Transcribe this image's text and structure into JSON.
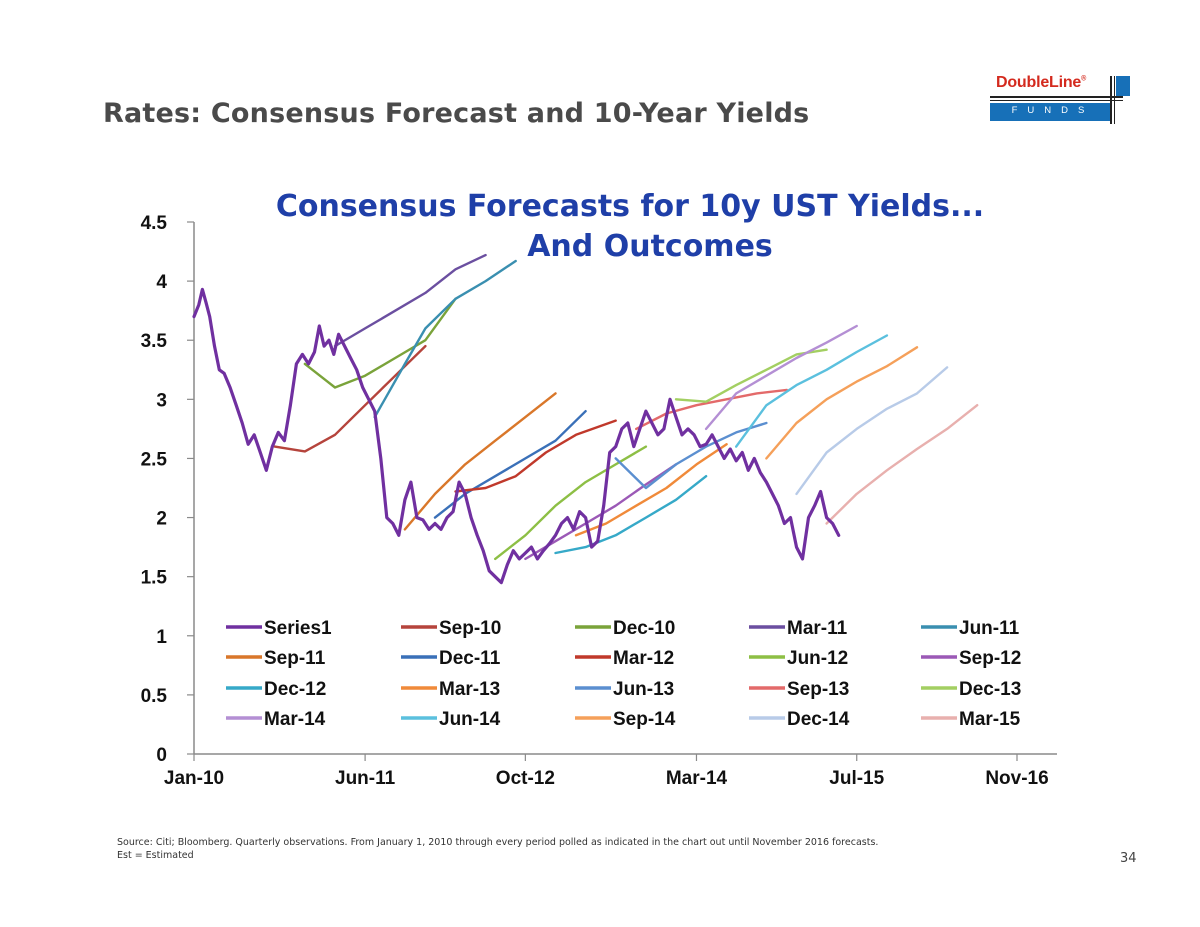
{
  "slide": {
    "title": "Rates: Consensus Forecast and 10-Year Yields",
    "source_line1": "Source: Citi; Bloomberg. Quarterly observations. From January 1, 2010  through every period polled as indicated in the chart out until November 2016 forecasts.",
    "source_line2": "Est = Estimated",
    "page_number": "34"
  },
  "logo": {
    "wordmark": "DoubleLine",
    "registered": "®",
    "subtitle": "FUNDS",
    "colors": {
      "red": "#d42a1e",
      "blue": "#1770b8"
    }
  },
  "chart_data": {
    "type": "line",
    "title_line1": "Consensus Forecasts for 10y UST Yields...",
    "title_line2": "And Outcomes",
    "title_color": "#1f3fa8",
    "y_ticks": [
      "0",
      "0.5",
      "1",
      "1.5",
      "2",
      "2.5",
      "3",
      "3.5",
      "4",
      "4.5"
    ],
    "ylim": [
      0,
      4.5
    ],
    "x_ticks": [
      {
        "label": "Jan-10",
        "t": 2010.0
      },
      {
        "label": "Jun-11",
        "t": 2011.42
      },
      {
        "label": "Oct-12",
        "t": 2012.75
      },
      {
        "label": "Mar-14",
        "t": 2014.17
      },
      {
        "label": "Jul-15",
        "t": 2015.5
      },
      {
        "label": "Nov-16",
        "t": 2016.83
      }
    ],
    "xlim": [
      2010.0,
      2016.83
    ],
    "series": [
      {
        "name": "Series1",
        "color": "#7030a0",
        "width": 3.2,
        "points": [
          [
            2010.0,
            3.7
          ],
          [
            2010.04,
            3.8
          ],
          [
            2010.07,
            3.93
          ],
          [
            2010.1,
            3.82
          ],
          [
            2010.13,
            3.7
          ],
          [
            2010.17,
            3.45
          ],
          [
            2010.21,
            3.25
          ],
          [
            2010.25,
            3.22
          ],
          [
            2010.3,
            3.1
          ],
          [
            2010.35,
            2.95
          ],
          [
            2010.4,
            2.8
          ],
          [
            2010.45,
            2.62
          ],
          [
            2010.5,
            2.7
          ],
          [
            2010.55,
            2.55
          ],
          [
            2010.6,
            2.4
          ],
          [
            2010.65,
            2.6
          ],
          [
            2010.7,
            2.72
          ],
          [
            2010.75,
            2.65
          ],
          [
            2010.8,
            2.95
          ],
          [
            2010.85,
            3.3
          ],
          [
            2010.9,
            3.38
          ],
          [
            2010.95,
            3.3
          ],
          [
            2011.0,
            3.4
          ],
          [
            2011.04,
            3.62
          ],
          [
            2011.08,
            3.45
          ],
          [
            2011.12,
            3.5
          ],
          [
            2011.16,
            3.38
          ],
          [
            2011.2,
            3.55
          ],
          [
            2011.25,
            3.45
          ],
          [
            2011.3,
            3.35
          ],
          [
            2011.35,
            3.25
          ],
          [
            2011.4,
            3.1
          ],
          [
            2011.45,
            3.0
          ],
          [
            2011.5,
            2.9
          ],
          [
            2011.55,
            2.5
          ],
          [
            2011.6,
            2.0
          ],
          [
            2011.65,
            1.95
          ],
          [
            2011.7,
            1.85
          ],
          [
            2011.75,
            2.15
          ],
          [
            2011.8,
            2.3
          ],
          [
            2011.85,
            2.0
          ],
          [
            2011.9,
            1.98
          ],
          [
            2011.95,
            1.9
          ],
          [
            2012.0,
            1.95
          ],
          [
            2012.05,
            1.9
          ],
          [
            2012.1,
            2.0
          ],
          [
            2012.15,
            2.05
          ],
          [
            2012.2,
            2.3
          ],
          [
            2012.25,
            2.2
          ],
          [
            2012.3,
            2.0
          ],
          [
            2012.35,
            1.85
          ],
          [
            2012.4,
            1.72
          ],
          [
            2012.45,
            1.55
          ],
          [
            2012.5,
            1.5
          ],
          [
            2012.55,
            1.45
          ],
          [
            2012.6,
            1.6
          ],
          [
            2012.65,
            1.72
          ],
          [
            2012.7,
            1.65
          ],
          [
            2012.75,
            1.7
          ],
          [
            2012.8,
            1.75
          ],
          [
            2012.85,
            1.65
          ],
          [
            2012.9,
            1.72
          ],
          [
            2012.95,
            1.78
          ],
          [
            2013.0,
            1.85
          ],
          [
            2013.05,
            1.95
          ],
          [
            2013.1,
            2.0
          ],
          [
            2013.15,
            1.9
          ],
          [
            2013.2,
            2.05
          ],
          [
            2013.25,
            2.0
          ],
          [
            2013.3,
            1.75
          ],
          [
            2013.35,
            1.8
          ],
          [
            2013.4,
            2.1
          ],
          [
            2013.45,
            2.55
          ],
          [
            2013.5,
            2.6
          ],
          [
            2013.55,
            2.75
          ],
          [
            2013.6,
            2.8
          ],
          [
            2013.65,
            2.6
          ],
          [
            2013.7,
            2.75
          ],
          [
            2013.75,
            2.9
          ],
          [
            2013.8,
            2.8
          ],
          [
            2013.85,
            2.7
          ],
          [
            2013.9,
            2.75
          ],
          [
            2013.95,
            3.0
          ],
          [
            2014.0,
            2.85
          ],
          [
            2014.05,
            2.7
          ],
          [
            2014.1,
            2.75
          ],
          [
            2014.15,
            2.7
          ],
          [
            2014.2,
            2.6
          ],
          [
            2014.25,
            2.62
          ],
          [
            2014.3,
            2.7
          ],
          [
            2014.35,
            2.6
          ],
          [
            2014.4,
            2.5
          ],
          [
            2014.45,
            2.58
          ],
          [
            2014.5,
            2.48
          ],
          [
            2014.55,
            2.55
          ],
          [
            2014.6,
            2.4
          ],
          [
            2014.65,
            2.5
          ],
          [
            2014.7,
            2.38
          ],
          [
            2014.75,
            2.3
          ],
          [
            2014.8,
            2.2
          ],
          [
            2014.85,
            2.1
          ],
          [
            2014.9,
            1.95
          ],
          [
            2014.95,
            2.0
          ],
          [
            2015.0,
            1.75
          ],
          [
            2015.05,
            1.65
          ],
          [
            2015.1,
            2.0
          ],
          [
            2015.15,
            2.1
          ],
          [
            2015.2,
            2.22
          ],
          [
            2015.25,
            2.0
          ],
          [
            2015.3,
            1.95
          ],
          [
            2015.35,
            1.85
          ]
        ]
      },
      {
        "name": "Sep-10",
        "color": "#b5443c",
        "width": 2.4,
        "points": [
          [
            2010.67,
            2.6
          ],
          [
            2010.92,
            2.56
          ],
          [
            2011.17,
            2.7
          ],
          [
            2011.42,
            2.95
          ],
          [
            2011.67,
            3.2
          ],
          [
            2011.92,
            3.45
          ]
        ]
      },
      {
        "name": "Dec-10",
        "color": "#7aa33a",
        "width": 2.4,
        "points": [
          [
            2010.92,
            3.3
          ],
          [
            2011.17,
            3.1
          ],
          [
            2011.42,
            3.2
          ],
          [
            2011.67,
            3.35
          ],
          [
            2011.92,
            3.5
          ],
          [
            2012.17,
            3.85
          ]
        ]
      },
      {
        "name": "Mar-11",
        "color": "#6b4fa0",
        "width": 2.4,
        "points": [
          [
            2011.17,
            3.45
          ],
          [
            2011.42,
            3.6
          ],
          [
            2011.67,
            3.75
          ],
          [
            2011.92,
            3.9
          ],
          [
            2012.17,
            4.1
          ],
          [
            2012.42,
            4.22
          ]
        ]
      },
      {
        "name": "Jun-11",
        "color": "#3a8fb0",
        "width": 2.4,
        "points": [
          [
            2011.5,
            2.85
          ],
          [
            2011.75,
            3.3
          ],
          [
            2011.92,
            3.6
          ],
          [
            2012.17,
            3.85
          ],
          [
            2012.42,
            4.0
          ],
          [
            2012.67,
            4.17
          ]
        ]
      },
      {
        "name": "Sep-11",
        "color": "#d9772a",
        "width": 2.4,
        "points": [
          [
            2011.75,
            1.9
          ],
          [
            2012.0,
            2.2
          ],
          [
            2012.25,
            2.45
          ],
          [
            2012.5,
            2.65
          ],
          [
            2012.75,
            2.85
          ],
          [
            2013.0,
            3.05
          ]
        ]
      },
      {
        "name": "Dec-11",
        "color": "#3a70b8",
        "width": 2.4,
        "points": [
          [
            2012.0,
            2.0
          ],
          [
            2012.25,
            2.2
          ],
          [
            2012.5,
            2.35
          ],
          [
            2012.75,
            2.5
          ],
          [
            2013.0,
            2.65
          ],
          [
            2013.25,
            2.9
          ]
        ]
      },
      {
        "name": "Mar-12",
        "color": "#c0392b",
        "width": 2.4,
        "points": [
          [
            2012.17,
            2.22
          ],
          [
            2012.42,
            2.25
          ],
          [
            2012.67,
            2.35
          ],
          [
            2012.92,
            2.55
          ],
          [
            2013.17,
            2.7
          ],
          [
            2013.5,
            2.82
          ]
        ]
      },
      {
        "name": "Jun-12",
        "color": "#8dbf45",
        "width": 2.4,
        "points": [
          [
            2012.5,
            1.65
          ],
          [
            2012.75,
            1.85
          ],
          [
            2013.0,
            2.1
          ],
          [
            2013.25,
            2.3
          ],
          [
            2013.5,
            2.45
          ],
          [
            2013.75,
            2.6
          ]
        ]
      },
      {
        "name": "Sep-12",
        "color": "#9b59b6",
        "width": 2.4,
        "points": [
          [
            2012.75,
            1.65
          ],
          [
            2013.0,
            1.8
          ],
          [
            2013.25,
            1.95
          ],
          [
            2013.5,
            2.1
          ],
          [
            2013.75,
            2.28
          ],
          [
            2014.0,
            2.45
          ]
        ]
      },
      {
        "name": "Dec-12",
        "color": "#36a9c8",
        "width": 2.4,
        "points": [
          [
            2013.0,
            1.7
          ],
          [
            2013.25,
            1.75
          ],
          [
            2013.5,
            1.85
          ],
          [
            2013.75,
            2.0
          ],
          [
            2014.0,
            2.15
          ],
          [
            2014.25,
            2.35
          ]
        ]
      },
      {
        "name": "Mar-13",
        "color": "#f08a3a",
        "width": 2.4,
        "points": [
          [
            2013.17,
            1.85
          ],
          [
            2013.42,
            1.95
          ],
          [
            2013.67,
            2.1
          ],
          [
            2013.92,
            2.25
          ],
          [
            2014.17,
            2.45
          ],
          [
            2014.42,
            2.62
          ]
        ]
      },
      {
        "name": "Jun-13",
        "color": "#5b8fd0",
        "width": 2.4,
        "points": [
          [
            2013.5,
            2.5
          ],
          [
            2013.75,
            2.25
          ],
          [
            2014.0,
            2.45
          ],
          [
            2014.25,
            2.6
          ],
          [
            2014.5,
            2.72
          ],
          [
            2014.75,
            2.8
          ]
        ]
      },
      {
        "name": "Sep-13",
        "color": "#e36a6a",
        "width": 2.4,
        "points": [
          [
            2013.67,
            2.75
          ],
          [
            2013.92,
            2.88
          ],
          [
            2014.17,
            2.95
          ],
          [
            2014.42,
            3.0
          ],
          [
            2014.67,
            3.05
          ],
          [
            2014.92,
            3.08
          ]
        ]
      },
      {
        "name": "Dec-13",
        "color": "#a3cf62",
        "width": 2.4,
        "points": [
          [
            2014.0,
            3.0
          ],
          [
            2014.25,
            2.98
          ],
          [
            2014.5,
            3.12
          ],
          [
            2014.75,
            3.25
          ],
          [
            2015.0,
            3.38
          ],
          [
            2015.25,
            3.42
          ]
        ]
      },
      {
        "name": "Mar-14",
        "color": "#b48fd4",
        "width": 2.4,
        "points": [
          [
            2014.25,
            2.75
          ],
          [
            2014.5,
            3.05
          ],
          [
            2014.75,
            3.2
          ],
          [
            2015.0,
            3.35
          ],
          [
            2015.25,
            3.48
          ],
          [
            2015.5,
            3.62
          ]
        ]
      },
      {
        "name": "Jun-14",
        "color": "#5bc0de",
        "width": 2.4,
        "points": [
          [
            2014.5,
            2.6
          ],
          [
            2014.75,
            2.95
          ],
          [
            2015.0,
            3.12
          ],
          [
            2015.25,
            3.25
          ],
          [
            2015.5,
            3.4
          ],
          [
            2015.75,
            3.54
          ]
        ]
      },
      {
        "name": "Sep-14",
        "color": "#f5a05a",
        "width": 2.4,
        "points": [
          [
            2014.75,
            2.5
          ],
          [
            2015.0,
            2.8
          ],
          [
            2015.25,
            3.0
          ],
          [
            2015.5,
            3.15
          ],
          [
            2015.75,
            3.28
          ],
          [
            2016.0,
            3.44
          ]
        ]
      },
      {
        "name": "Dec-14",
        "color": "#b8cbe8",
        "width": 2.4,
        "points": [
          [
            2015.0,
            2.2
          ],
          [
            2015.25,
            2.55
          ],
          [
            2015.5,
            2.75
          ],
          [
            2015.75,
            2.92
          ],
          [
            2016.0,
            3.05
          ],
          [
            2016.25,
            3.27
          ]
        ]
      },
      {
        "name": "Mar-15",
        "color": "#e8b0ae",
        "width": 2.4,
        "points": [
          [
            2015.25,
            1.95
          ],
          [
            2015.5,
            2.2
          ],
          [
            2015.75,
            2.4
          ],
          [
            2016.0,
            2.58
          ],
          [
            2016.25,
            2.75
          ],
          [
            2016.5,
            2.95
          ]
        ]
      }
    ]
  }
}
